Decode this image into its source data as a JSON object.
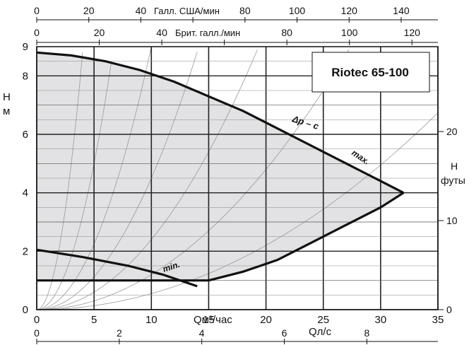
{
  "chart_data": {
    "type": "line",
    "title": "Riotec 65-100",
    "xlabel": "Qм³/час",
    "ylabel_left": "Н\nм",
    "ylabel_right": "Н\nфуты",
    "xlim": [
      0,
      35
    ],
    "ylim": [
      0,
      9
    ],
    "x_ticks": [
      0,
      5,
      10,
      15,
      20,
      25,
      30,
      35
    ],
    "x_tick_labels": [
      "0",
      "5",
      "10",
      "15",
      "20",
      "25",
      "30",
      "35"
    ],
    "y_ticks": [
      0,
      2,
      4,
      6,
      8,
      9
    ],
    "y_tick_labels": [
      "0",
      "2",
      "4",
      "6",
      "8",
      "9"
    ],
    "grid": true,
    "secondary_axes": {
      "us_gpm": {
        "label": "Галл. США/мин",
        "ticks": [
          0,
          20,
          40,
          60,
          80,
          100,
          120,
          140
        ],
        "tick_labels": [
          "0",
          "20",
          "40",
          "",
          "80",
          "100",
          "120",
          "140"
        ]
      },
      "uk_gpm": {
        "label": "Брит. галл./мин",
        "ticks": [
          0,
          20,
          40,
          60,
          80,
          100,
          120
        ],
        "tick_labels": [
          "0",
          "20",
          "40",
          "",
          "80",
          "100",
          "120"
        ]
      },
      "l_per_s": {
        "label": "Qл/с",
        "ticks": [
          0,
          2,
          4,
          6,
          8
        ],
        "tick_labels": [
          "0",
          "2",
          "4",
          "6",
          "8"
        ]
      },
      "ft": {
        "ticks": [
          0,
          10,
          20
        ],
        "tick_labels": [
          "0",
          "10",
          "20"
        ]
      }
    },
    "series": [
      {
        "name": "max.",
        "x": [
          0,
          3,
          6,
          9,
          12,
          15,
          18,
          21,
          24,
          27,
          30,
          32
        ],
        "y": [
          8.8,
          8.7,
          8.5,
          8.2,
          7.8,
          7.3,
          6.8,
          6.2,
          5.6,
          5.0,
          4.4,
          4.0
        ]
      },
      {
        "name": "min.",
        "x": [
          0,
          4,
          8,
          11,
          14
        ],
        "y": [
          2.05,
          1.8,
          1.5,
          1.2,
          0.8
        ]
      },
      {
        "name": "max. (right boundary)",
        "x": [
          15,
          18,
          21,
          24,
          27,
          30,
          32
        ],
        "y": [
          1.0,
          1.3,
          1.7,
          2.3,
          2.9,
          3.5,
          4.0
        ]
      }
    ],
    "boundary_lines": [
      {
        "type": "hline",
        "y": 1.0,
        "x_from": 0,
        "x_to": 15
      }
    ],
    "annotations": [
      {
        "text": "Δp – c"
      },
      {
        "text": "max."
      },
      {
        "text": "min."
      }
    ]
  }
}
